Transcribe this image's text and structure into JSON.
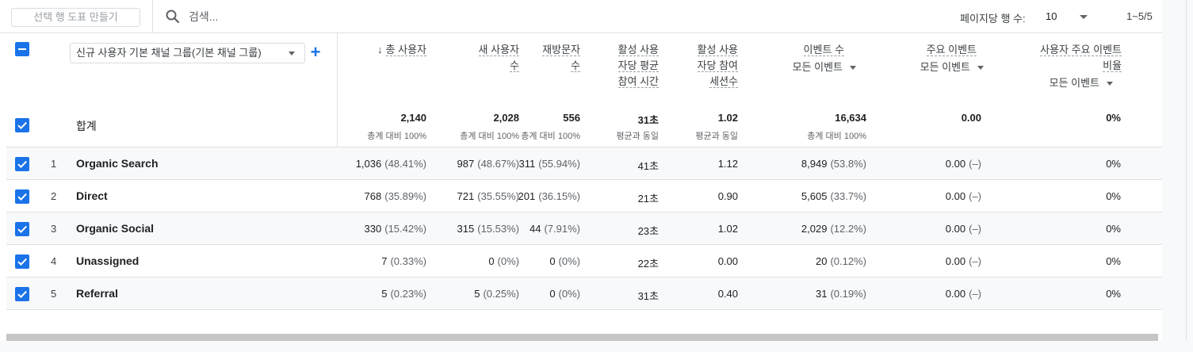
{
  "toolbar": {
    "chart_button": "선택 행 도표 만들기",
    "search_placeholder": "검색...",
    "rows_per_page_label": "페이지당 행 수:",
    "rows_per_page_value": "10",
    "page_range": "1~5/5"
  },
  "dimension": {
    "selector_label": "신규 사용자 기본 채널 그룹(기본 채널 그룹)",
    "add_label": "+"
  },
  "columns": [
    {
      "lines": [
        "총 사용자"
      ],
      "sorted": "↓"
    },
    {
      "lines": [
        "새 사용자",
        "수"
      ]
    },
    {
      "lines": [
        "재방문자",
        "수"
      ]
    },
    {
      "lines": [
        "활성 사용",
        "자당 평균",
        "참여 시간"
      ]
    },
    {
      "lines": [
        "활성 사용",
        "자당 참여",
        "세션수"
      ]
    },
    {
      "lines": [
        "이벤트 수"
      ],
      "sub": "모든 이벤트"
    },
    {
      "lines": [
        "주요 이벤트"
      ],
      "sub": "모든 이벤트"
    },
    {
      "lines": [
        "사용자 주요 이벤트",
        "비율"
      ],
      "sub": "모든 이벤트"
    }
  ],
  "totals": {
    "label": "합계",
    "values": [
      "2,140",
      "2,028",
      "556",
      "31초",
      "1.02",
      "16,634",
      "0.00",
      "0%"
    ],
    "notes": [
      "총계 대비 100%",
      "총계 대비 100%",
      "총계 대비 100%",
      "평균과 동일",
      "평균과 동일",
      "총계 대비 100%",
      "",
      ""
    ]
  },
  "rows": [
    {
      "num": "1",
      "label": "Organic Search",
      "cells": [
        [
          "1,036",
          "(48.41%)"
        ],
        [
          "987",
          "(48.67%)"
        ],
        [
          "311",
          "(55.94%)"
        ],
        [
          "41초",
          ""
        ],
        [
          "1.12",
          ""
        ],
        [
          "8,949",
          "(53.8%)"
        ],
        [
          "0.00",
          "(–)"
        ],
        [
          "0%",
          ""
        ]
      ]
    },
    {
      "num": "2",
      "label": "Direct",
      "cells": [
        [
          "768",
          "(35.89%)"
        ],
        [
          "721",
          "(35.55%)"
        ],
        [
          "201",
          "(36.15%)"
        ],
        [
          "21초",
          ""
        ],
        [
          "0.90",
          ""
        ],
        [
          "5,605",
          "(33.7%)"
        ],
        [
          "0.00",
          "(–)"
        ],
        [
          "0%",
          ""
        ]
      ]
    },
    {
      "num": "3",
      "label": "Organic Social",
      "cells": [
        [
          "330",
          "(15.42%)"
        ],
        [
          "315",
          "(15.53%)"
        ],
        [
          "44",
          "(7.91%)"
        ],
        [
          "23초",
          ""
        ],
        [
          "1.02",
          ""
        ],
        [
          "2,029",
          "(12.2%)"
        ],
        [
          "0.00",
          "(–)"
        ],
        [
          "0%",
          ""
        ]
      ]
    },
    {
      "num": "4",
      "label": "Unassigned",
      "cells": [
        [
          "7",
          "(0.33%)"
        ],
        [
          "0",
          "(0%)"
        ],
        [
          "0",
          "(0%)"
        ],
        [
          "22초",
          ""
        ],
        [
          "0.00",
          ""
        ],
        [
          "20",
          "(0.12%)"
        ],
        [
          "0.00",
          "(–)"
        ],
        [
          "0%",
          ""
        ]
      ]
    },
    {
      "num": "5",
      "label": "Referral",
      "cells": [
        [
          "5",
          "(0.23%)"
        ],
        [
          "5",
          "(0.25%)"
        ],
        [
          "0",
          "(0%)"
        ],
        [
          "31초",
          ""
        ],
        [
          "0.40",
          ""
        ],
        [
          "31",
          "(0.19%)"
        ],
        [
          "0.00",
          "(–)"
        ],
        [
          "0%",
          ""
        ]
      ]
    }
  ],
  "colors": {
    "accent": "#1a73e8",
    "border": "#e0e0e0",
    "row_alt": "#f8f9fa"
  }
}
